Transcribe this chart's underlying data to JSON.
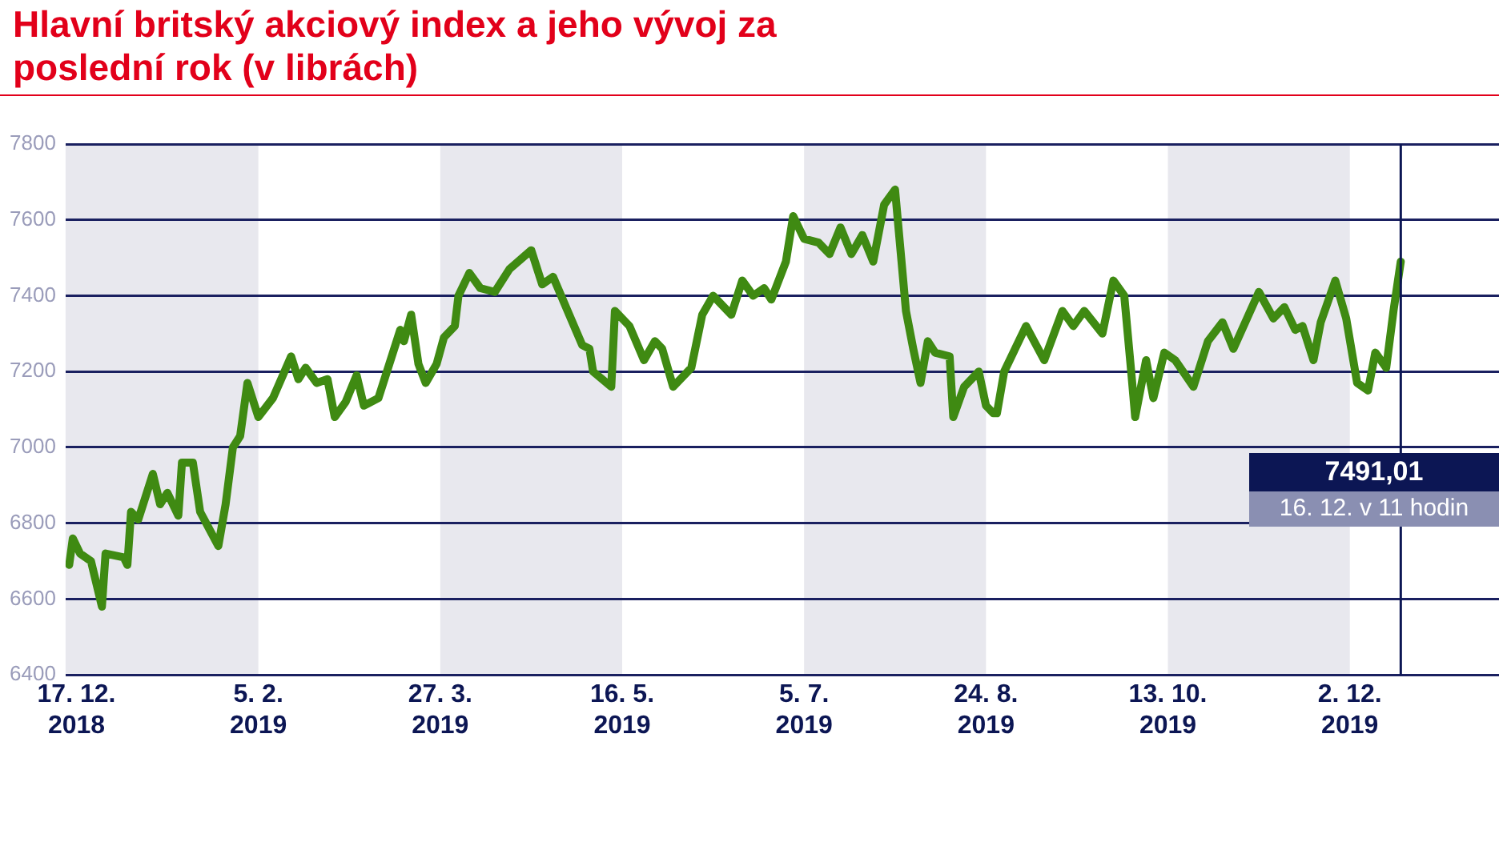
{
  "chart_data": {
    "type": "line",
    "title": "Hlavní britský akciový index a jeho vývoj za poslední rok (v librách)",
    "x": [
      "2018-12-15",
      "2018-12-16",
      "2018-12-18",
      "2018-12-21",
      "2018-12-24",
      "2018-12-25",
      "2018-12-30",
      "2018-12-31",
      "2019-01-01",
      "2019-01-03",
      "2019-01-07",
      "2019-01-09",
      "2019-01-11",
      "2019-01-14",
      "2019-01-15",
      "2019-01-18",
      "2019-01-20",
      "2019-01-25",
      "2019-01-27",
      "2019-01-29",
      "2019-01-31",
      "2019-02-02",
      "2019-02-05",
      "2019-02-09",
      "2019-02-14",
      "2019-02-16",
      "2019-02-18",
      "2019-02-21",
      "2019-02-24",
      "2019-02-26",
      "2019-03-01",
      "2019-03-04",
      "2019-03-06",
      "2019-03-10",
      "2019-03-16",
      "2019-03-17",
      "2019-03-19",
      "2019-03-21",
      "2019-03-23",
      "2019-03-26",
      "2019-03-28",
      "2019-03-31",
      "2019-04-01",
      "2019-04-04",
      "2019-04-07",
      "2019-04-11",
      "2019-04-15",
      "2019-04-21",
      "2019-04-24",
      "2019-04-27",
      "2019-05-01",
      "2019-05-05",
      "2019-05-07",
      "2019-05-08",
      "2019-05-13",
      "2019-05-14",
      "2019-05-18",
      "2019-05-22",
      "2019-05-25",
      "2019-05-27",
      "2019-05-30",
      "2019-06-04",
      "2019-06-07",
      "2019-06-10",
      "2019-06-15",
      "2019-06-18",
      "2019-06-21",
      "2019-06-24",
      "2019-06-26",
      "2019-06-30",
      "2019-07-02",
      "2019-07-05",
      "2019-07-09",
      "2019-07-12",
      "2019-07-15",
      "2019-07-18",
      "2019-07-21",
      "2019-07-24",
      "2019-07-27",
      "2019-07-30",
      "2019-08-02",
      "2019-08-04",
      "2019-08-06",
      "2019-08-08",
      "2019-08-10",
      "2019-08-14",
      "2019-08-15",
      "2019-08-18",
      "2019-08-22",
      "2019-08-24",
      "2019-08-26",
      "2019-08-27",
      "2019-08-29",
      "2019-09-04",
      "2019-09-09",
      "2019-09-14",
      "2019-09-17",
      "2019-09-20",
      "2019-09-25",
      "2019-09-28",
      "2019-10-01",
      "2019-10-03",
      "2019-10-04",
      "2019-10-07",
      "2019-10-09",
      "2019-10-12",
      "2019-10-15",
      "2019-10-20",
      "2019-10-24",
      "2019-10-28",
      "2019-10-31",
      "2019-11-07",
      "2019-11-11",
      "2019-11-14",
      "2019-11-17",
      "2019-11-19",
      "2019-11-22",
      "2019-11-24",
      "2019-11-28",
      "2019-12-01",
      "2019-12-04",
      "2019-12-07",
      "2019-12-09",
      "2019-12-12",
      "2019-12-14",
      "2019-12-16"
    ],
    "values": [
      6690,
      6760,
      6720,
      6700,
      6580,
      6720,
      6710,
      6690,
      6830,
      6810,
      6930,
      6850,
      6880,
      6820,
      6960,
      6960,
      6830,
      6740,
      6850,
      7000,
      7030,
      7170,
      7080,
      7130,
      7240,
      7180,
      7210,
      7170,
      7180,
      7080,
      7120,
      7190,
      7110,
      7130,
      7310,
      7280,
      7350,
      7220,
      7170,
      7220,
      7290,
      7320,
      7400,
      7460,
      7420,
      7410,
      7470,
      7520,
      7430,
      7450,
      7360,
      7270,
      7260,
      7200,
      7160,
      7360,
      7320,
      7230,
      7280,
      7260,
      7160,
      7210,
      7350,
      7400,
      7350,
      7440,
      7400,
      7420,
      7390,
      7490,
      7610,
      7550,
      7540,
      7510,
      7580,
      7510,
      7560,
      7490,
      7640,
      7680,
      7360,
      7260,
      7170,
      7280,
      7250,
      7240,
      7080,
      7160,
      7200,
      7110,
      7090,
      7090,
      7200,
      7320,
      7230,
      7360,
      7320,
      7360,
      7300,
      7440,
      7400,
      7190,
      7080,
      7230,
      7130,
      7250,
      7230,
      7160,
      7280,
      7330,
      7260,
      7410,
      7340,
      7370,
      7310,
      7320,
      7230,
      7330,
      7440,
      7340,
      7170,
      7150,
      7250,
      7210,
      7360,
      7490
    ],
    "color": "#3f8a12",
    "marker": "none",
    "line_style": "solid",
    "xlim": [
      "2018-12-14",
      "2020-01-12"
    ],
    "xticks": [
      {
        "value": "2018-12-17",
        "label": "17. 12.\n2018"
      },
      {
        "value": "2019-02-05",
        "label": "5. 2.\n2019"
      },
      {
        "value": "2019-03-27",
        "label": "27. 3.\n2019"
      },
      {
        "value": "2019-05-16",
        "label": "16. 5.\n2019"
      },
      {
        "value": "2019-07-05",
        "label": "5. 7.\n2019"
      },
      {
        "value": "2019-08-24",
        "label": "24. 8.\n2019"
      },
      {
        "value": "2019-10-13",
        "label": "13. 10.\n2019"
      },
      {
        "value": "2019-12-02",
        "label": "2. 12.\n2019"
      }
    ],
    "ylim": [
      6400,
      7800
    ],
    "yticks": [
      6400,
      6600,
      6800,
      7000,
      7200,
      7400,
      7600,
      7800
    ],
    "grid": "y",
    "legend": false,
    "bands": [
      {
        "axis": "x",
        "from": "2018-12-14",
        "to": "2019-02-05",
        "color": "#e8e8ee"
      },
      {
        "axis": "x",
        "from": "2019-03-27",
        "to": "2019-05-16",
        "color": "#e8e8ee"
      },
      {
        "axis": "x",
        "from": "2019-07-05",
        "to": "2019-08-24",
        "color": "#e8e8ee"
      },
      {
        "axis": "x",
        "from": "2019-10-13",
        "to": "2019-12-02",
        "color": "#e8e8ee"
      }
    ],
    "ref_lines": [
      {
        "axis": "x",
        "value": "2019-12-16",
        "label": "16. 12. v 11 hodin",
        "color": "#0c1654"
      }
    ],
    "annotations": [
      "7491,01"
    ]
  }
}
